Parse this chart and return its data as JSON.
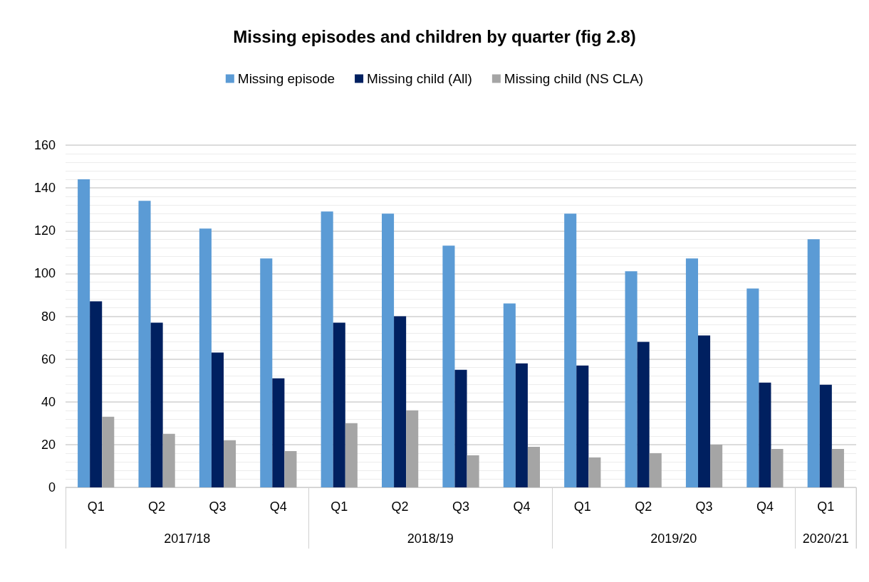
{
  "chart_data": {
    "type": "bar",
    "title": "Missing episodes and children by quarter (fig 2.8)",
    "categories": [
      "Q1",
      "Q2",
      "Q3",
      "Q4",
      "Q1",
      "Q2",
      "Q3",
      "Q4",
      "Q1",
      "Q2",
      "Q3",
      "Q4",
      "Q1"
    ],
    "annotations": [
      "2017/18",
      "2018/19",
      "2019/20",
      "2020/21"
    ],
    "series": [
      {
        "name": "Missing episode",
        "color": "#5b9bd5",
        "values": [
          144,
          134,
          121,
          107,
          129,
          128,
          113,
          86,
          128,
          101,
          107,
          93,
          116
        ]
      },
      {
        "name": "Missing child (All)",
        "color": "#002060",
        "values": [
          87,
          77,
          63,
          51,
          77,
          80,
          55,
          58,
          57,
          68,
          71,
          49,
          48
        ]
      },
      {
        "name": "Missing child (NS CLA)",
        "color": "#a5a5a5",
        "values": [
          33,
          25,
          22,
          17,
          30,
          36,
          15,
          19,
          14,
          16,
          20,
          18,
          18
        ]
      }
    ],
    "ylim": [
      0,
      160
    ],
    "yticks": [
      0,
      20,
      40,
      60,
      80,
      100,
      120,
      140,
      160
    ],
    "grid": "y",
    "legend": "top"
  }
}
